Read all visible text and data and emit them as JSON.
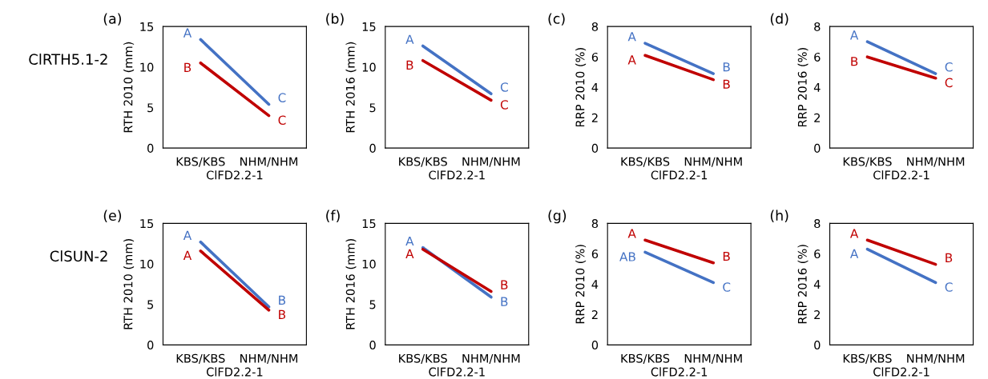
{
  "chart_data": [
    {
      "type": "line",
      "title": "(a)",
      "ylabel": "RTH 2010 (mm)",
      "xlabel": "ClFD2.2-1",
      "categories": [
        "KBS/KBS",
        "NHM/NHM"
      ],
      "ylim": [
        0,
        15
      ],
      "yticks": [
        0,
        5,
        10,
        15
      ],
      "grid": false,
      "marker": "none",
      "annotations": [
        "ClRTH5.1-2"
      ],
      "series": [
        {
          "color": "#4472c4",
          "values": [
            13.4,
            5.4
          ],
          "value_labels": [
            "A",
            "C"
          ]
        },
        {
          "color": "#c00000",
          "values": [
            10.5,
            4.0
          ],
          "value_labels": [
            "B",
            "C"
          ]
        }
      ]
    },
    {
      "type": "line",
      "title": "(b)",
      "ylabel": "RTH 2016 (mm)",
      "xlabel": "ClFD2.2-1",
      "categories": [
        "KBS/KBS",
        "NHM/NHM"
      ],
      "ylim": [
        0,
        15
      ],
      "yticks": [
        0,
        5,
        10,
        15
      ],
      "grid": false,
      "marker": "none",
      "series": [
        {
          "color": "#4472c4",
          "values": [
            12.6,
            6.7
          ],
          "value_labels": [
            "A",
            "C"
          ]
        },
        {
          "color": "#c00000",
          "values": [
            10.8,
            5.9
          ],
          "value_labels": [
            "B",
            "C"
          ]
        }
      ]
    },
    {
      "type": "line",
      "title": "(c)",
      "ylabel": "RRP 2010 (%)",
      "xlabel": "ClFD2.2-1",
      "categories": [
        "KBS/KBS",
        "NHM/NHM"
      ],
      "ylim": [
        0,
        8
      ],
      "yticks": [
        0,
        2,
        4,
        6,
        8
      ],
      "grid": false,
      "marker": "none",
      "series": [
        {
          "color": "#4472c4",
          "values": [
            6.9,
            4.9
          ],
          "value_labels": [
            "A",
            "B"
          ]
        },
        {
          "color": "#c00000",
          "values": [
            6.1,
            4.5
          ],
          "value_labels": [
            "A",
            "B"
          ]
        }
      ]
    },
    {
      "type": "line",
      "title": "(d)",
      "ylabel": "RRP 2016 (%)",
      "xlabel": "ClFD2.2-1",
      "categories": [
        "KBS/KBS",
        "NHM/NHM"
      ],
      "ylim": [
        0,
        8
      ],
      "yticks": [
        0,
        2,
        4,
        6,
        8
      ],
      "grid": false,
      "marker": "none",
      "series": [
        {
          "color": "#4472c4",
          "values": [
            7.0,
            4.9
          ],
          "value_labels": [
            "A",
            "C"
          ]
        },
        {
          "color": "#c00000",
          "values": [
            6.0,
            4.6
          ],
          "value_labels": [
            "B",
            "C"
          ]
        }
      ]
    },
    {
      "type": "line",
      "title": "(e)",
      "ylabel": "RTH 2010 (mm)",
      "xlabel": "ClFD2.2-1",
      "categories": [
        "KBS/KBS",
        "NHM/NHM"
      ],
      "ylim": [
        0,
        15
      ],
      "yticks": [
        0,
        5,
        10,
        15
      ],
      "grid": false,
      "marker": "none",
      "annotations": [
        "ClSUN-2"
      ],
      "series": [
        {
          "color": "#4472c4",
          "values": [
            12.7,
            4.7
          ],
          "value_labels": [
            "A",
            "B"
          ]
        },
        {
          "color": "#c00000",
          "values": [
            11.6,
            4.3
          ],
          "value_labels": [
            "A",
            "B"
          ]
        }
      ]
    },
    {
      "type": "line",
      "title": "(f)",
      "ylabel": "RTH 2016 (mm)",
      "xlabel": "ClFD2.2-1",
      "categories": [
        "KBS/KBS",
        "NHM/NHM"
      ],
      "ylim": [
        0,
        15
      ],
      "yticks": [
        0,
        5,
        10,
        15
      ],
      "grid": false,
      "marker": "none",
      "series": [
        {
          "color": "#4472c4",
          "values": [
            12.0,
            5.9
          ],
          "value_labels": [
            "A",
            "B"
          ]
        },
        {
          "color": "#c00000",
          "values": [
            11.8,
            6.6
          ],
          "value_labels": [
            "A",
            "B"
          ]
        }
      ]
    },
    {
      "type": "line",
      "title": "(g)",
      "ylabel": "RRP 2010 (%)",
      "xlabel": "ClFD2.2-1",
      "categories": [
        "KBS/KBS",
        "NHM/NHM"
      ],
      "ylim": [
        0,
        8
      ],
      "yticks": [
        0,
        2,
        4,
        6,
        8
      ],
      "grid": false,
      "marker": "none",
      "series": [
        {
          "color": "#4472c4",
          "values": [
            6.1,
            4.1
          ],
          "value_labels": [
            "AB",
            "C"
          ]
        },
        {
          "color": "#c00000",
          "values": [
            6.9,
            5.4
          ],
          "value_labels": [
            "A",
            "B"
          ]
        }
      ]
    },
    {
      "type": "line",
      "title": "(h)",
      "ylabel": "RRP 2016 (%)",
      "xlabel": "ClFD2.2-1",
      "categories": [
        "KBS/KBS",
        "NHM/NHM"
      ],
      "ylim": [
        0,
        8
      ],
      "yticks": [
        0,
        2,
        4,
        6,
        8
      ],
      "grid": false,
      "marker": "none",
      "series": [
        {
          "color": "#4472c4",
          "values": [
            6.3,
            4.1
          ],
          "value_labels": [
            "A",
            "C"
          ]
        },
        {
          "color": "#c00000",
          "values": [
            6.9,
            5.3
          ],
          "value_labels": [
            "A",
            "B"
          ]
        }
      ]
    }
  ]
}
